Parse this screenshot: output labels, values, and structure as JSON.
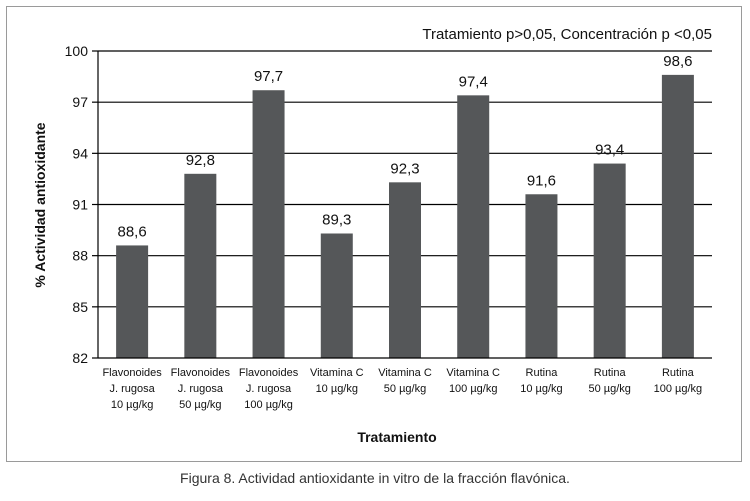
{
  "chart_data": {
    "type": "bar",
    "annotation": "Tratamiento p>0,05, Concentración p <0,05",
    "xlabel": "Tratamiento",
    "ylabel": "% Actividad antioxidante",
    "ylim": [
      82,
      100
    ],
    "yticks": [
      "82",
      "85",
      "88",
      "91",
      "94",
      "97",
      "100"
    ],
    "grid": true,
    "bar_color": "#555759",
    "categories": [
      [
        "Flavonoides",
        "J. rugosa",
        "10 µg/kg"
      ],
      [
        "Flavonoides",
        "J. rugosa",
        "50 µg/kg"
      ],
      [
        "Flavonoides",
        "J. rugosa",
        "100 µg/kg"
      ],
      [
        "Vitamina C",
        "10 µg/kg"
      ],
      [
        "Vitamina C",
        "50 µg/kg"
      ],
      [
        "Vitamina C",
        "100 µg/kg"
      ],
      [
        "Rutina",
        "10 µg/kg"
      ],
      [
        "Rutina",
        "50 µg/kg"
      ],
      [
        "Rutina",
        "100 µg/kg"
      ]
    ],
    "values": [
      88.6,
      92.8,
      97.7,
      89.3,
      92.3,
      97.4,
      91.6,
      93.4,
      98.6
    ],
    "value_labels": [
      "88,6",
      "92,8",
      "97,7",
      "89,3",
      "92,3",
      "97,4",
      "91,6",
      "93,4",
      "98,6"
    ]
  },
  "caption": "Figura 8. Actividad antioxidante in vitro de la fracción flavónica."
}
